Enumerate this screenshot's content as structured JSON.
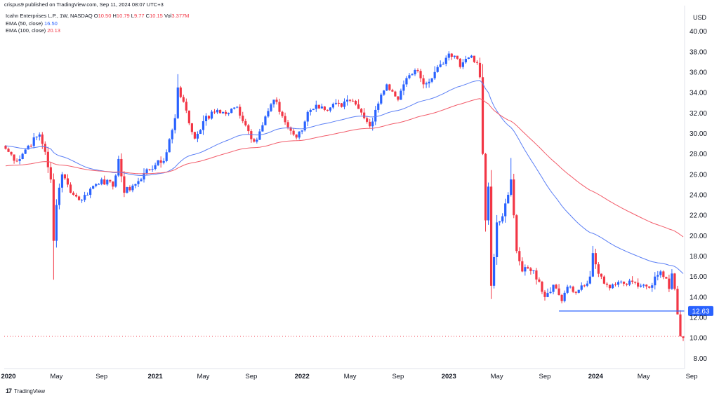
{
  "header": {
    "published": "crispus9 published on TradingView.com, Sep 11, 2024 08:07 UTC+3"
  },
  "legend": {
    "symbol_line": "Icahn Enterprises L.P., 1W, NASDAQ",
    "ohlc": {
      "o_label": "O",
      "o": "10.50",
      "h_label": "H",
      "h": "10.79",
      "l_label": "L",
      "l": "9.77",
      "c_label": "C",
      "c": "10.15",
      "vol_label": "Vol",
      "vol": "3.377M"
    },
    "ema50_label": "EMA (50, close)",
    "ema50_value": "16.50",
    "ema100_label": "EMA (100, close)",
    "ema100_value": "20.13"
  },
  "currency": "USD",
  "footer": {
    "brand": "TradingView"
  },
  "colors": {
    "up": "#2962ff",
    "down": "#f23645",
    "ema50": "#5b7ff5",
    "ema100": "#f25c6a",
    "level": "#2962ff"
  },
  "chart_data": {
    "type": "candlestick",
    "symbol": "Icahn Enterprises L.P., NASDAQ",
    "interval": "1W",
    "ylim": [
      7,
      41
    ],
    "y_ticks": [
      "8.00",
      "10.00",
      "12.00",
      "14.00",
      "16.00",
      "18.00",
      "20.00",
      "22.00",
      "24.00",
      "26.00",
      "28.00",
      "30.00",
      "32.00",
      "34.00",
      "36.00",
      "38.00",
      "40.00"
    ],
    "x_ticks": [
      "2020",
      "May",
      "Sep",
      "2021",
      "May",
      "Sep",
      "2022",
      "May",
      "Sep",
      "2023",
      "May",
      "Sep",
      "2024",
      "May",
      "Sep"
    ],
    "x_tick_weeks": [
      1,
      18,
      34,
      53,
      70,
      87,
      105,
      122,
      139,
      157,
      174,
      191,
      209,
      226,
      243
    ],
    "price_level": {
      "value": 12.63,
      "label": "12.63",
      "start_week": 196
    },
    "last_close": 10.15,
    "anchors": [
      [
        0,
        28.5
      ],
      [
        4,
        27.3
      ],
      [
        8,
        28.8
      ],
      [
        12,
        29.9
      ],
      [
        14,
        28.2
      ],
      [
        16,
        25.5
      ],
      [
        17,
        19.5
      ],
      [
        18,
        23
      ],
      [
        20,
        26
      ],
      [
        22,
        25
      ],
      [
        24,
        24
      ],
      [
        27,
        23.5
      ],
      [
        30,
        24.6
      ],
      [
        34,
        25.5
      ],
      [
        38,
        24.8
      ],
      [
        40,
        27.5
      ],
      [
        42,
        24.2
      ],
      [
        45,
        24.9
      ],
      [
        48,
        25.5
      ],
      [
        50,
        26.5
      ],
      [
        53,
        26.9
      ],
      [
        56,
        27.3
      ],
      [
        60,
        31.5
      ],
      [
        61,
        34.5
      ],
      [
        63,
        33.1
      ],
      [
        65,
        31
      ],
      [
        67,
        29.5
      ],
      [
        70,
        31.2
      ],
      [
        75,
        32.3
      ],
      [
        78,
        31.9
      ],
      [
        82,
        32.6
      ],
      [
        85,
        30.8
      ],
      [
        88,
        29.2
      ],
      [
        90,
        30.2
      ],
      [
        93,
        32.2
      ],
      [
        95,
        33.3
      ],
      [
        98,
        31.7
      ],
      [
        100,
        30.6
      ],
      [
        103,
        29.6
      ],
      [
        105,
        30.3
      ],
      [
        107,
        32.1
      ],
      [
        110,
        32.8
      ],
      [
        113,
        32.3
      ],
      [
        116,
        32.9
      ],
      [
        119,
        32.6
      ],
      [
        122,
        33.2
      ],
      [
        125,
        32.4
      ],
      [
        127,
        31.5
      ],
      [
        129,
        30.7
      ],
      [
        131,
        32.3
      ],
      [
        133,
        33.8
      ],
      [
        135,
        34.8
      ],
      [
        137,
        34.1
      ],
      [
        139,
        33.3
      ],
      [
        141,
        34.8
      ],
      [
        143,
        35.7
      ],
      [
        145,
        36.2
      ],
      [
        147,
        35.4
      ],
      [
        149,
        34.9
      ],
      [
        151,
        35.4
      ],
      [
        153,
        36.5
      ],
      [
        156,
        37.4
      ],
      [
        159,
        37.6
      ],
      [
        161,
        36.5
      ],
      [
        163,
        37.3
      ],
      [
        165,
        37.6
      ],
      [
        167,
        36.9
      ],
      [
        168,
        35.5
      ],
      [
        169,
        28
      ],
      [
        170,
        21.5
      ],
      [
        171,
        24.8
      ],
      [
        172,
        15.1
      ],
      [
        173,
        17.9
      ],
      [
        174,
        21.3
      ],
      [
        175,
        21.4
      ],
      [
        176,
        21.9
      ],
      [
        178,
        24
      ],
      [
        179,
        25.5
      ],
      [
        180,
        22
      ],
      [
        181,
        18.5
      ],
      [
        182,
        17.5
      ],
      [
        183,
        16.5
      ],
      [
        185,
        16.8
      ],
      [
        187,
        16.6
      ],
      [
        189,
        15.5
      ],
      [
        191,
        14
      ],
      [
        193,
        14.5
      ],
      [
        194,
        15.2
      ],
      [
        196,
        14.2
      ],
      [
        197,
        13.6
      ],
      [
        199,
        15
      ],
      [
        201,
        14.5
      ],
      [
        203,
        14.7
      ],
      [
        205,
        15.1
      ],
      [
        207,
        16
      ],
      [
        208,
        18.3
      ],
      [
        209,
        17.2
      ],
      [
        211,
        16
      ],
      [
        213,
        15.2
      ],
      [
        216,
        15.2
      ],
      [
        219,
        15.3
      ],
      [
        221,
        15.6
      ],
      [
        223,
        15.4
      ],
      [
        226,
        15.2
      ],
      [
        228,
        14.9
      ],
      [
        230,
        16
      ],
      [
        232,
        16.5
      ],
      [
        234,
        15.8
      ],
      [
        235,
        14.8
      ],
      [
        236,
        16.3
      ],
      [
        237,
        14.8
      ],
      [
        238,
        12.3
      ],
      [
        239,
        10.15
      ]
    ]
  }
}
